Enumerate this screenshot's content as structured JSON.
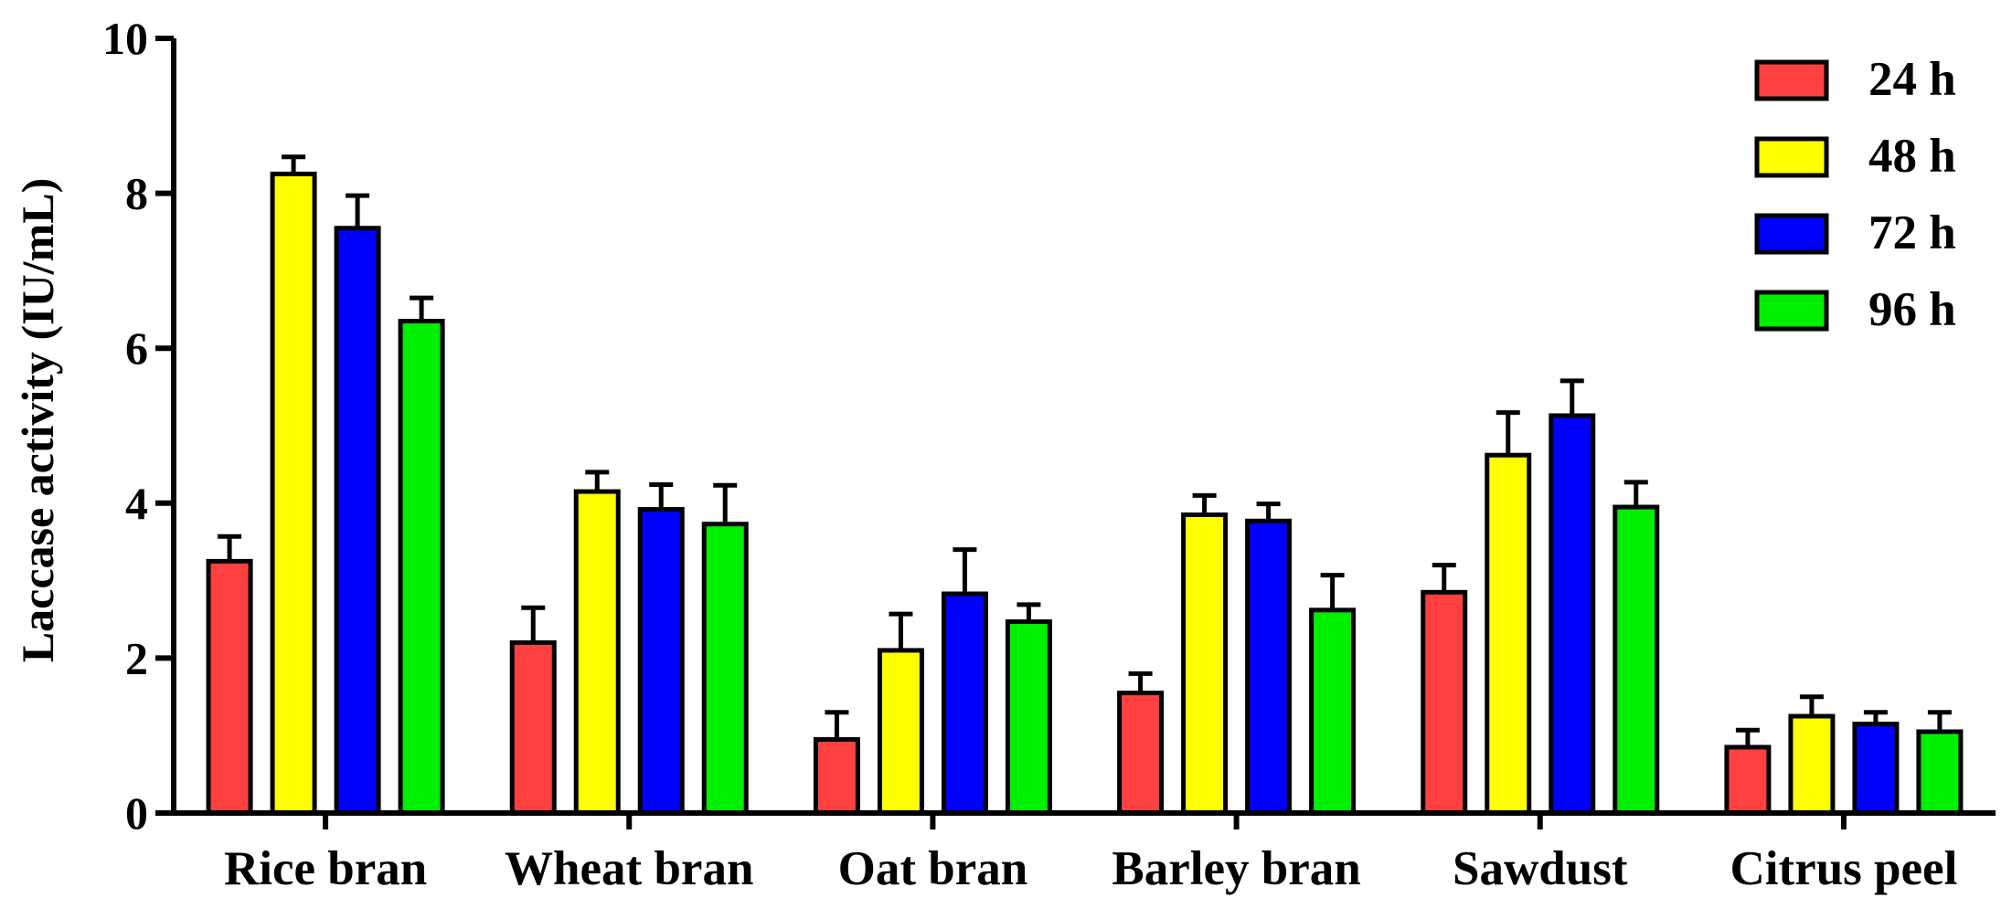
{
  "chart_data": {
    "type": "bar",
    "title": "",
    "xlabel": "",
    "ylabel": "Laccase activity (IU/mL)",
    "ylim": [
      0,
      10
    ],
    "yticks": [
      "0",
      "2",
      "4",
      "6",
      "8",
      "10"
    ],
    "categories": [
      "Rice bran",
      "Wheat bran",
      "Oat bran",
      "Barley bran",
      "Sawdust",
      "Citrus peel"
    ],
    "legend_position": "top-right",
    "grid": false,
    "series": [
      {
        "name": "24 h",
        "color": "#ff4040",
        "values": [
          3.25,
          2.2,
          0.95,
          1.55,
          2.85,
          0.85
        ],
        "errors": [
          0.32,
          0.45,
          0.35,
          0.25,
          0.35,
          0.22
        ]
      },
      {
        "name": "48 h",
        "color": "#ffff00",
        "values": [
          8.25,
          4.15,
          2.1,
          3.85,
          4.62,
          1.25
        ],
        "errors": [
          0.22,
          0.25,
          0.47,
          0.25,
          0.55,
          0.25
        ]
      },
      {
        "name": "72 h",
        "color": "#0000ff",
        "values": [
          7.55,
          3.92,
          2.83,
          3.77,
          5.13,
          1.15
        ],
        "errors": [
          0.42,
          0.32,
          0.57,
          0.22,
          0.45,
          0.15
        ]
      },
      {
        "name": "96 h",
        "color": "#00ee00",
        "values": [
          6.35,
          3.73,
          2.47,
          2.62,
          3.95,
          1.05
        ],
        "errors": [
          0.3,
          0.5,
          0.22,
          0.45,
          0.32,
          0.25
        ]
      }
    ]
  }
}
